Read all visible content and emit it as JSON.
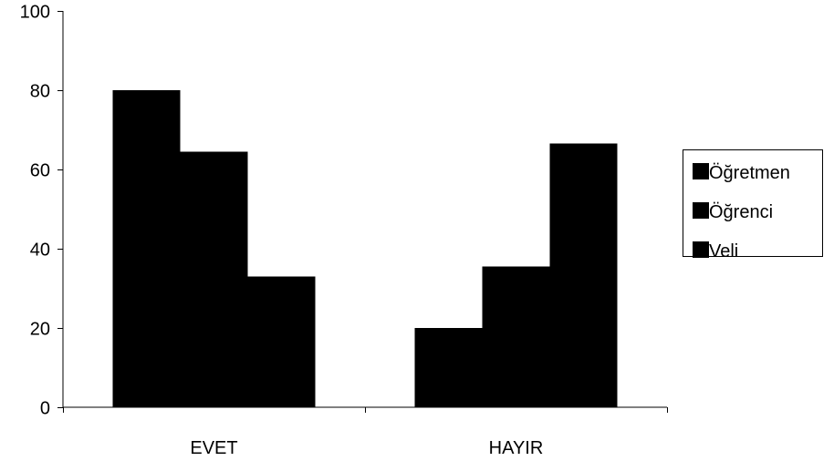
{
  "chart_data": {
    "type": "bar",
    "categories": [
      "EVET",
      "HAYIR"
    ],
    "series": [
      {
        "name": "Öğretmen",
        "values": [
          80,
          20
        ],
        "color": "#000000"
      },
      {
        "name": "Öğrenci",
        "values": [
          64.5,
          35.5
        ],
        "color": "#000000"
      },
      {
        "name": "Veli",
        "values": [
          33,
          66.5
        ],
        "color": "#000000"
      }
    ],
    "yticks": [
      0,
      20,
      40,
      60,
      80,
      100
    ],
    "ylim": [
      0,
      100
    ],
    "grid": false,
    "legend_position": "right"
  }
}
